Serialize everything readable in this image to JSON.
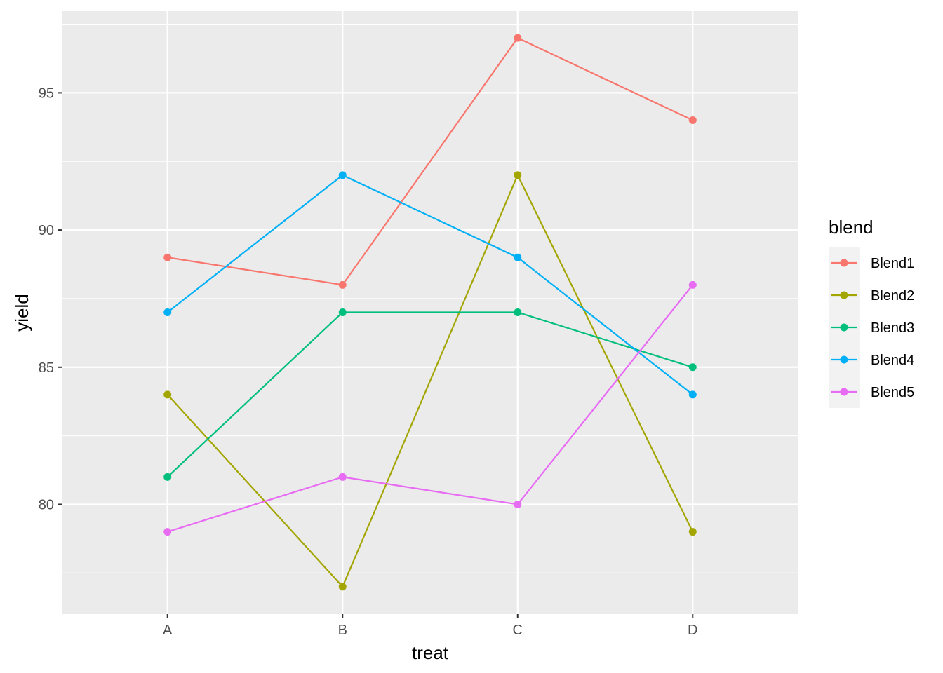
{
  "chart_data": {
    "type": "line",
    "xlabel": "treat",
    "ylabel": "yield",
    "categories": [
      "A",
      "B",
      "C",
      "D"
    ],
    "ylim": [
      76,
      98
    ],
    "y_ticks": [
      80,
      85,
      90,
      95
    ],
    "grid": true,
    "legend": {
      "title": "blend",
      "placement": "right"
    },
    "series": [
      {
        "name": "Blend1",
        "color": "#F8766D",
        "values": [
          89,
          88,
          97,
          94
        ]
      },
      {
        "name": "Blend2",
        "color": "#A3A500",
        "values": [
          84,
          77,
          92,
          79
        ]
      },
      {
        "name": "Blend3",
        "color": "#00BF7D",
        "values": [
          81,
          87,
          87,
          85
        ]
      },
      {
        "name": "Blend4",
        "color": "#00B0F6",
        "values": [
          87,
          92,
          89,
          84
        ]
      },
      {
        "name": "Blend5",
        "color": "#E76BF3",
        "values": [
          79,
          81,
          80,
          88
        ]
      }
    ]
  }
}
